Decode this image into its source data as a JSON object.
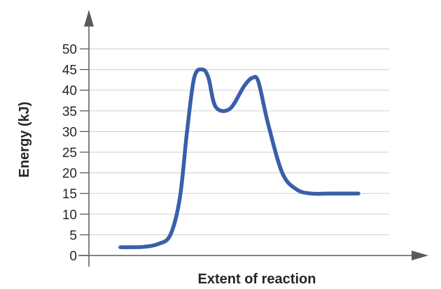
{
  "chart_data": {
    "type": "line",
    "title": "",
    "xlabel": "Extent of reaction",
    "ylabel": "Energy (kJ)",
    "ylim": [
      0,
      50
    ],
    "yticks": [
      0,
      5,
      10,
      15,
      20,
      25,
      30,
      35,
      40,
      45,
      50
    ],
    "grid": true,
    "series": [
      {
        "name": "",
        "x": [
          0.0,
          0.04,
          0.1,
          0.16,
          0.21,
          0.25,
          0.28,
          0.31,
          0.345,
          0.37,
          0.4,
          0.46,
          0.52,
          0.555,
          0.58,
          0.62,
          0.68,
          0.74,
          0.8,
          0.88,
          1.0
        ],
        "y": [
          2,
          2,
          2.1,
          2.8,
          5,
          14,
          30,
          43,
          45,
          43,
          36,
          35.5,
          41,
          43,
          42,
          32,
          20,
          16,
          15,
          15,
          15
        ]
      }
    ],
    "colors": {
      "line": "#3a5faa",
      "grid": "#d6d6d6",
      "axis": "#5a5a5a"
    }
  }
}
